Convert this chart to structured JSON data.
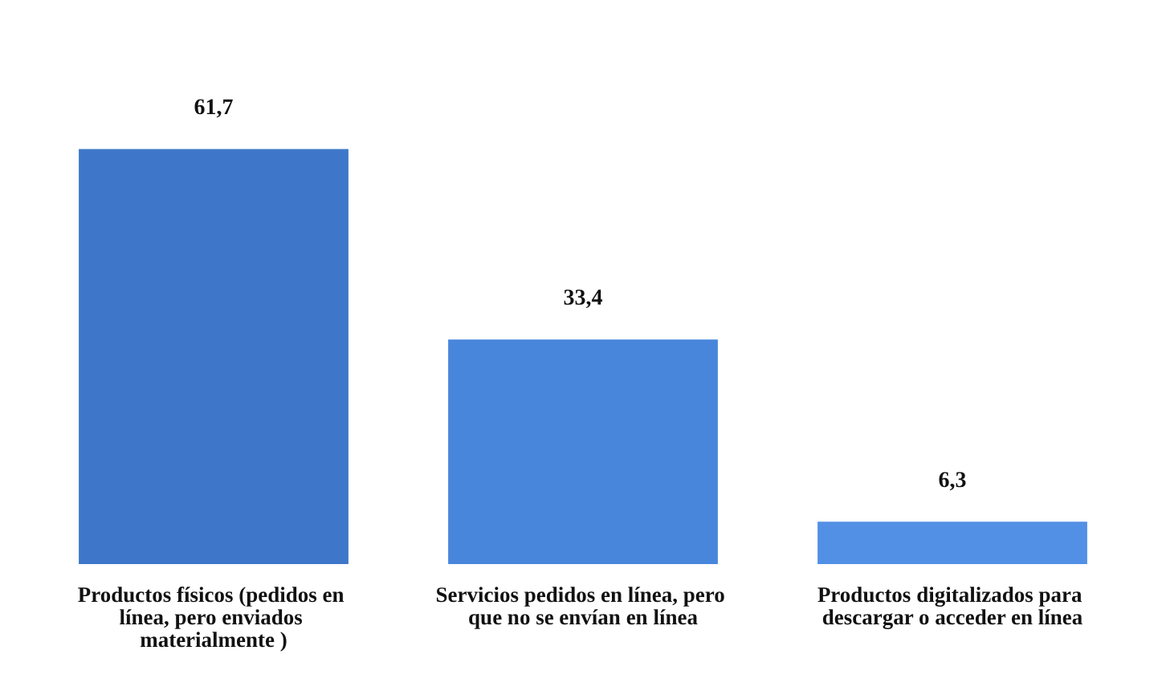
{
  "chart_data": {
    "type": "bar",
    "categories": [
      "Productos físicos (pedidos en línea, pero enviados materialmente )",
      "Servicios pedidos en línea, pero que no se envían en línea",
      "Productos digitalizados para descargar o acceder en línea"
    ],
    "values": [
      61.7,
      33.4,
      6.3
    ],
    "value_labels": [
      "61,7",
      "33,4",
      "6,3"
    ],
    "colors": [
      "#3e77c9",
      "#4886dc",
      "#5290e6"
    ]
  }
}
